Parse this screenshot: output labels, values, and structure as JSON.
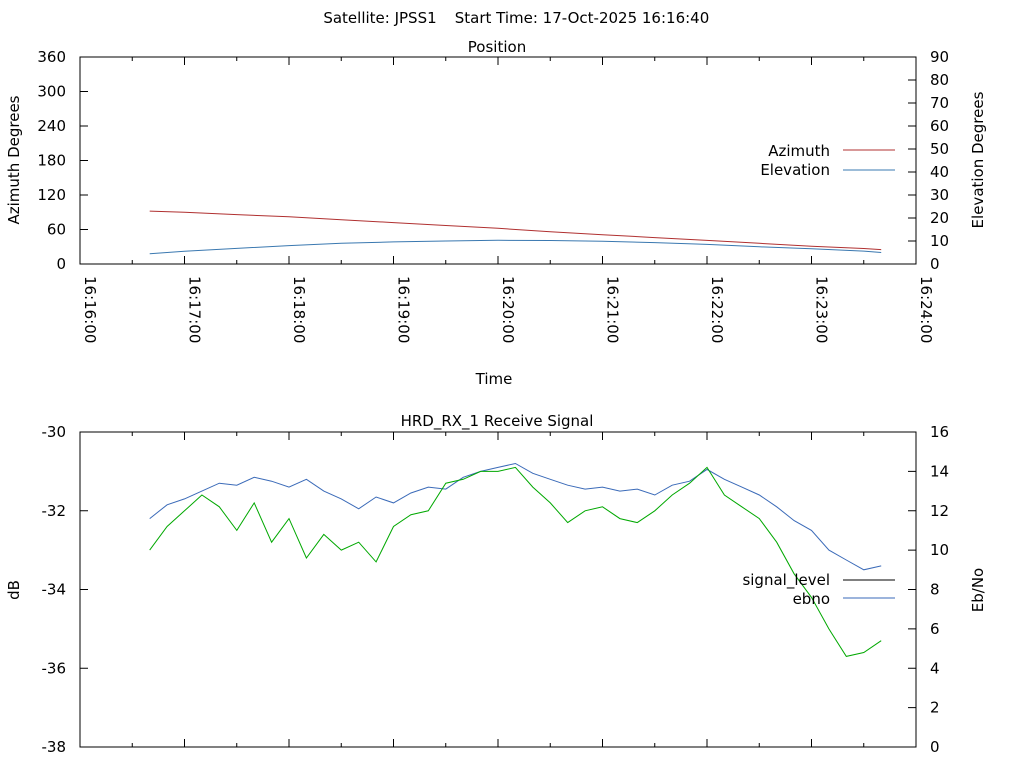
{
  "header": {
    "satellite": "Satellite: JPSS1",
    "start_time": "Start Time: 17-Oct-2025 16:16:40"
  },
  "chart_data": [
    {
      "type": "line",
      "title": "Position",
      "xlabel": "Time",
      "ylabel_left": "Azimuth Degrees",
      "ylabel_right": "Elevation Degrees",
      "x_ticks": [
        "16:16:00",
        "16:17:00",
        "16:18:00",
        "16:19:00",
        "16:20:00",
        "16:21:00",
        "16:22:00",
        "16:23:00",
        "16:24:00"
      ],
      "x_range": [
        "16:16:00",
        "16:24:00"
      ],
      "y_left_ticks": [
        "0",
        "60",
        "120",
        "180",
        "240",
        "300",
        "360"
      ],
      "y_left_range": [
        0,
        360
      ],
      "y_right_ticks": [
        "0",
        "10",
        "20",
        "30",
        "40",
        "50",
        "60",
        "70",
        "80",
        "90"
      ],
      "y_right_range": [
        0,
        90
      ],
      "legend_position": "right",
      "grid": false,
      "series": [
        {
          "name": "Azimuth",
          "axis": "left",
          "color": "#b03030",
          "points": [
            [
              "16:16:40",
              92
            ],
            [
              "16:17:00",
              90
            ],
            [
              "16:17:30",
              86
            ],
            [
              "16:18:00",
              82
            ],
            [
              "16:18:30",
              77
            ],
            [
              "16:19:00",
              72
            ],
            [
              "16:19:30",
              67
            ],
            [
              "16:20:00",
              62
            ],
            [
              "16:20:30",
              56
            ],
            [
              "16:21:00",
              51
            ],
            [
              "16:21:30",
              46
            ],
            [
              "16:22:00",
              41
            ],
            [
              "16:22:30",
              36
            ],
            [
              "16:23:00",
              31
            ],
            [
              "16:23:30",
              27
            ],
            [
              "16:23:40",
              25
            ]
          ]
        },
        {
          "name": "Elevation",
          "axis": "right",
          "color": "#3a78b0",
          "points": [
            [
              "16:16:40",
              4.5
            ],
            [
              "16:17:00",
              5.5
            ],
            [
              "16:17:30",
              6.8
            ],
            [
              "16:18:00",
              8
            ],
            [
              "16:18:30",
              9
            ],
            [
              "16:19:00",
              9.6
            ],
            [
              "16:19:30",
              10
            ],
            [
              "16:20:00",
              10.3
            ],
            [
              "16:20:30",
              10.2
            ],
            [
              "16:21:00",
              9.9
            ],
            [
              "16:21:30",
              9.3
            ],
            [
              "16:22:00",
              8.5
            ],
            [
              "16:22:30",
              7.5
            ],
            [
              "16:23:00",
              6.6
            ],
            [
              "16:23:30",
              5.6
            ],
            [
              "16:23:40",
              5
            ]
          ]
        }
      ]
    },
    {
      "type": "line",
      "title": "HRD_RX_1 Receive Signal",
      "ylabel_left": "dB",
      "ylabel_right": "Eb/No",
      "x_range": [
        "16:16:00",
        "16:24:00"
      ],
      "y_left_ticks": [
        "-30",
        "-32",
        "-34",
        "-36",
        "-38"
      ],
      "y_left_range": [
        -38,
        -30
      ],
      "y_right_ticks": [
        "0",
        "2",
        "4",
        "6",
        "8",
        "10",
        "12",
        "14",
        "16"
      ],
      "y_right_range": [
        0,
        16
      ],
      "legend_position": "right",
      "grid": false,
      "series": [
        {
          "name": "signal_level",
          "axis": "left",
          "color": "#000000",
          "legend_only": true,
          "points": []
        },
        {
          "name": "ebno",
          "axis": "right",
          "color": "#3a6ab8",
          "points": [
            [
              "16:16:40",
              11.6
            ],
            [
              "16:16:50",
              12.3
            ],
            [
              "16:17:00",
              12.6
            ],
            [
              "16:17:10",
              13.0
            ],
            [
              "16:17:20",
              13.4
            ],
            [
              "16:17:30",
              13.3
            ],
            [
              "16:17:40",
              13.7
            ],
            [
              "16:17:50",
              13.5
            ],
            [
              "16:18:00",
              13.2
            ],
            [
              "16:18:10",
              13.6
            ],
            [
              "16:18:20",
              13.0
            ],
            [
              "16:18:30",
              12.6
            ],
            [
              "16:18:40",
              12.1
            ],
            [
              "16:18:50",
              12.7
            ],
            [
              "16:19:00",
              12.4
            ],
            [
              "16:19:10",
              12.9
            ],
            [
              "16:19:20",
              13.2
            ],
            [
              "16:19:30",
              13.1
            ],
            [
              "16:19:40",
              13.7
            ],
            [
              "16:19:50",
              14.0
            ],
            [
              "16:20:00",
              14.2
            ],
            [
              "16:20:10",
              14.4
            ],
            [
              "16:20:20",
              13.9
            ],
            [
              "16:20:30",
              13.6
            ],
            [
              "16:20:40",
              13.3
            ],
            [
              "16:20:50",
              13.1
            ],
            [
              "16:21:00",
              13.2
            ],
            [
              "16:21:10",
              13.0
            ],
            [
              "16:21:20",
              13.1
            ],
            [
              "16:21:30",
              12.8
            ],
            [
              "16:21:40",
              13.3
            ],
            [
              "16:21:50",
              13.5
            ],
            [
              "16:22:00",
              14.1
            ],
            [
              "16:22:10",
              13.6
            ],
            [
              "16:22:20",
              13.2
            ],
            [
              "16:22:30",
              12.8
            ],
            [
              "16:22:40",
              12.2
            ],
            [
              "16:22:50",
              11.5
            ],
            [
              "16:23:00",
              11.0
            ],
            [
              "16:23:10",
              10.0
            ],
            [
              "16:23:20",
              9.5
            ],
            [
              "16:23:30",
              9.0
            ],
            [
              "16:23:40",
              9.2
            ]
          ]
        },
        {
          "name": "",
          "axis": "left",
          "color": "#00a800",
          "points": [
            [
              "16:16:40",
              -33.0
            ],
            [
              "16:16:50",
              -32.4
            ],
            [
              "16:17:00",
              -32.0
            ],
            [
              "16:17:10",
              -31.6
            ],
            [
              "16:17:20",
              -31.9
            ],
            [
              "16:17:30",
              -32.5
            ],
            [
              "16:17:40",
              -31.8
            ],
            [
              "16:17:50",
              -32.8
            ],
            [
              "16:18:00",
              -32.2
            ],
            [
              "16:18:10",
              -33.2
            ],
            [
              "16:18:20",
              -32.6
            ],
            [
              "16:18:30",
              -33.0
            ],
            [
              "16:18:40",
              -32.8
            ],
            [
              "16:18:50",
              -33.3
            ],
            [
              "16:19:00",
              -32.4
            ],
            [
              "16:19:10",
              -32.1
            ],
            [
              "16:19:20",
              -32.0
            ],
            [
              "16:19:30",
              -31.3
            ],
            [
              "16:19:40",
              -31.2
            ],
            [
              "16:19:50",
              -31.0
            ],
            [
              "16:20:00",
              -31.0
            ],
            [
              "16:20:10",
              -30.9
            ],
            [
              "16:20:20",
              -31.4
            ],
            [
              "16:20:30",
              -31.8
            ],
            [
              "16:20:40",
              -32.3
            ],
            [
              "16:20:50",
              -32.0
            ],
            [
              "16:21:00",
              -31.9
            ],
            [
              "16:21:10",
              -32.2
            ],
            [
              "16:21:20",
              -32.3
            ],
            [
              "16:21:30",
              -32.0
            ],
            [
              "16:21:40",
              -31.6
            ],
            [
              "16:21:50",
              -31.3
            ],
            [
              "16:22:00",
              -30.9
            ],
            [
              "16:22:10",
              -31.6
            ],
            [
              "16:22:20",
              -31.9
            ],
            [
              "16:22:30",
              -32.2
            ],
            [
              "16:22:40",
              -32.8
            ],
            [
              "16:22:50",
              -33.6
            ],
            [
              "16:23:00",
              -34.2
            ],
            [
              "16:23:10",
              -35.0
            ],
            [
              "16:23:20",
              -35.7
            ],
            [
              "16:23:30",
              -35.6
            ],
            [
              "16:23:40",
              -35.3
            ]
          ]
        }
      ]
    }
  ]
}
